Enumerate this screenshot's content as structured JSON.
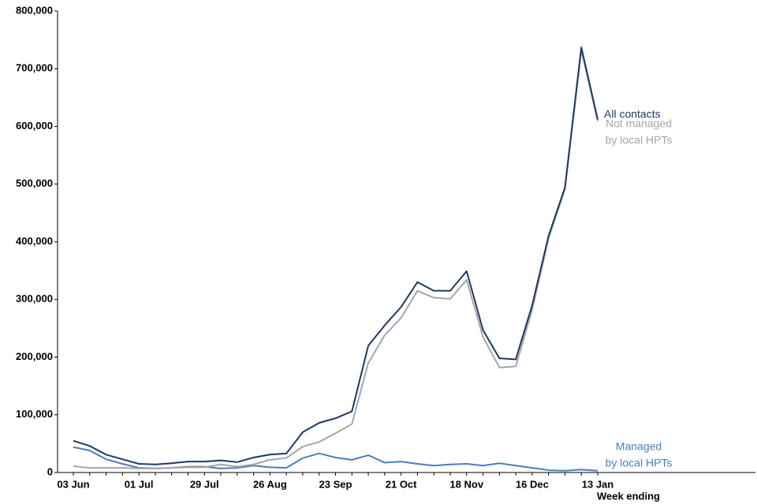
{
  "chart_data": {
    "type": "line",
    "x_label": "Week ending",
    "categories": [
      "03 Jun",
      null,
      null,
      null,
      "01 Jul",
      null,
      null,
      null,
      "29 Jul",
      null,
      null,
      null,
      "26 Aug",
      null,
      null,
      null,
      "23 Sep",
      null,
      null,
      null,
      "21 Oct",
      null,
      null,
      null,
      "18 Nov",
      null,
      null,
      null,
      "16 Dec",
      null,
      null,
      null,
      "13 Jan"
    ],
    "ylim": [
      0,
      800000
    ],
    "yticks": [
      0,
      {
        "value": 100000,
        "label": "100,000"
      },
      {
        "value": 200000,
        "label": "200,000"
      },
      {
        "value": 300000,
        "label": "300,000"
      },
      {
        "value": 400000,
        "label": "400,000"
      },
      {
        "value": 500000,
        "label": "500,000"
      },
      {
        "value": 600000,
        "label": "600,000"
      },
      {
        "value": 700000,
        "label": "700,000"
      },
      {
        "value": 800000,
        "label": "800,000"
      }
    ],
    "series": [
      {
        "name": [
          "Managed",
          "by local HPTs"
        ],
        "color": "#4a7ebb",
        "values": [
          44000,
          38000,
          23000,
          15000,
          8000,
          7000,
          8000,
          10000,
          10000,
          7000,
          8000,
          12000,
          9000,
          8000,
          25000,
          33000,
          26000,
          22000,
          30000,
          17000,
          19000,
          15000,
          12000,
          14000,
          15000,
          12000,
          16000,
          12000,
          8000,
          4000,
          3000,
          5000,
          3000
        ]
      },
      {
        "name": [
          "Not managed",
          "by local HPTs"
        ],
        "color": "#a6a6a6",
        "values": [
          11000,
          8000,
          8000,
          8000,
          7000,
          7000,
          8000,
          9000,
          9000,
          14000,
          10000,
          14000,
          22000,
          25000,
          45000,
          53000,
          68000,
          84000,
          190000,
          238000,
          268000,
          315000,
          303000,
          301000,
          334000,
          235000,
          182000,
          184000,
          282000,
          406000,
          491000,
          732000,
          609000
        ]
      },
      {
        "name": [
          "All contacts"
        ],
        "color": "#1f3864",
        "values": [
          55000,
          46000,
          31000,
          23000,
          15000,
          14000,
          16000,
          19000,
          19000,
          21000,
          18000,
          26000,
          31000,
          33000,
          70000,
          86000,
          94000,
          106000,
          220000,
          255000,
          287000,
          330000,
          315000,
          315000,
          349000,
          247000,
          198000,
          196000,
          290000,
          410000,
          494000,
          737000,
          612000
        ]
      }
    ]
  }
}
